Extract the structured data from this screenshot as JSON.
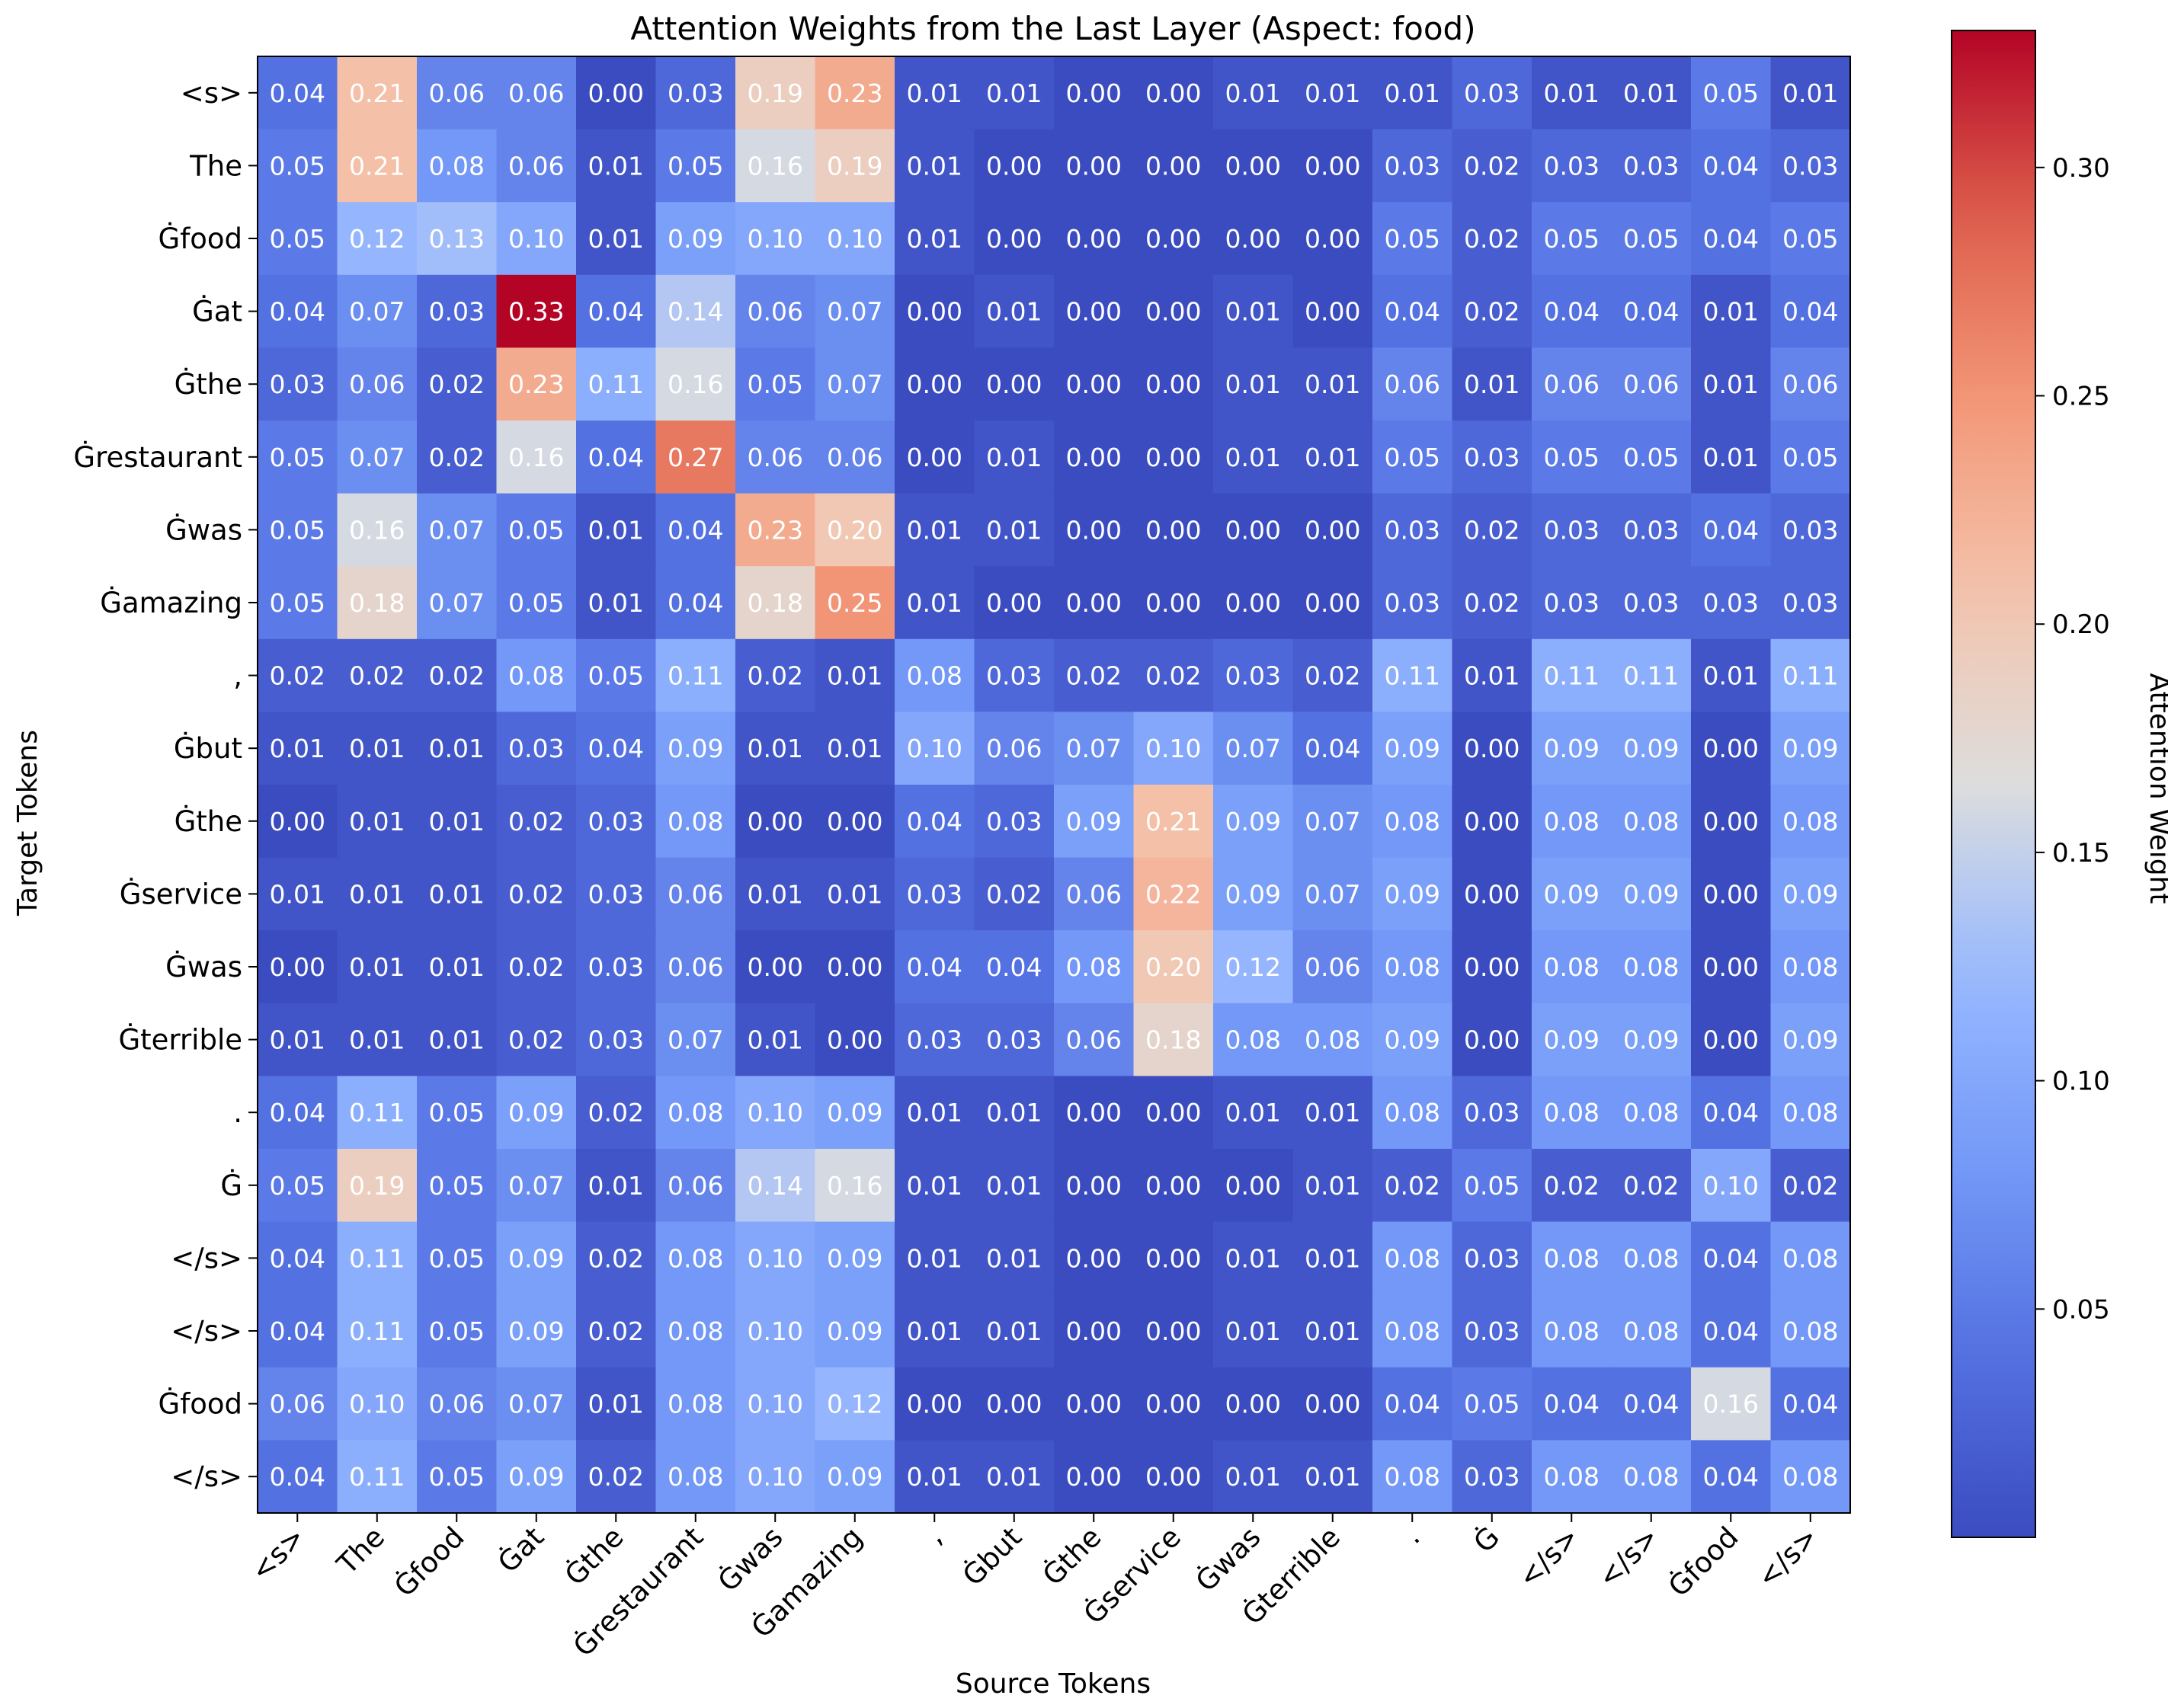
{
  "chart_data": {
    "type": "heatmap",
    "title": "Attention Weights from the Last Layer (Aspect: food)",
    "xlabel": "Source Tokens",
    "ylabel": "Target Tokens",
    "x_tokens": [
      "<s>",
      "The",
      "Ġfood",
      "Ġat",
      "Ġthe",
      "Ġrestaurant",
      "Ġwas",
      "Ġamazing",
      ",",
      "Ġbut",
      "Ġthe",
      "Ġservice",
      "Ġwas",
      "Ġterrible",
      ".",
      "Ġ",
      "</s>",
      "</s>",
      "Ġfood",
      "</s>"
    ],
    "y_tokens": [
      "<s>",
      "The",
      "Ġfood",
      "Ġat",
      "Ġthe",
      "Ġrestaurant",
      "Ġwas",
      "Ġamazing",
      ",",
      "Ġbut",
      "Ġthe",
      "Ġservice",
      "Ġwas",
      "Ġterrible",
      ".",
      "Ġ",
      "</s>",
      "</s>",
      "Ġfood",
      "</s>"
    ],
    "values": [
      [
        0.04,
        0.21,
        0.06,
        0.06,
        0.0,
        0.03,
        0.19,
        0.23,
        0.01,
        0.01,
        0.0,
        0.0,
        0.01,
        0.01,
        0.01,
        0.03,
        0.01,
        0.01,
        0.05,
        0.01
      ],
      [
        0.05,
        0.21,
        0.08,
        0.06,
        0.01,
        0.05,
        0.16,
        0.19,
        0.01,
        0.0,
        0.0,
        0.0,
        0.0,
        0.0,
        0.03,
        0.02,
        0.03,
        0.03,
        0.04,
        0.03
      ],
      [
        0.05,
        0.12,
        0.13,
        0.1,
        0.01,
        0.09,
        0.1,
        0.1,
        0.01,
        0.0,
        0.0,
        0.0,
        0.0,
        0.0,
        0.05,
        0.02,
        0.05,
        0.05,
        0.04,
        0.05
      ],
      [
        0.04,
        0.07,
        0.03,
        0.33,
        0.04,
        0.14,
        0.06,
        0.07,
        0.0,
        0.01,
        0.0,
        0.0,
        0.01,
        0.0,
        0.04,
        0.02,
        0.04,
        0.04,
        0.01,
        0.04
      ],
      [
        0.03,
        0.06,
        0.02,
        0.23,
        0.11,
        0.16,
        0.05,
        0.07,
        0.0,
        0.0,
        0.0,
        0.0,
        0.01,
        0.01,
        0.06,
        0.01,
        0.06,
        0.06,
        0.01,
        0.06
      ],
      [
        0.05,
        0.07,
        0.02,
        0.16,
        0.04,
        0.27,
        0.06,
        0.06,
        0.0,
        0.01,
        0.0,
        0.0,
        0.01,
        0.01,
        0.05,
        0.03,
        0.05,
        0.05,
        0.01,
        0.05
      ],
      [
        0.05,
        0.16,
        0.07,
        0.05,
        0.01,
        0.04,
        0.23,
        0.2,
        0.01,
        0.01,
        0.0,
        0.0,
        0.0,
        0.0,
        0.03,
        0.02,
        0.03,
        0.03,
        0.04,
        0.03
      ],
      [
        0.05,
        0.18,
        0.07,
        0.05,
        0.01,
        0.04,
        0.18,
        0.25,
        0.01,
        0.0,
        0.0,
        0.0,
        0.0,
        0.0,
        0.03,
        0.02,
        0.03,
        0.03,
        0.03,
        0.03
      ],
      [
        0.02,
        0.02,
        0.02,
        0.08,
        0.05,
        0.11,
        0.02,
        0.01,
        0.08,
        0.03,
        0.02,
        0.02,
        0.03,
        0.02,
        0.11,
        0.01,
        0.11,
        0.11,
        0.01,
        0.11
      ],
      [
        0.01,
        0.01,
        0.01,
        0.03,
        0.04,
        0.09,
        0.01,
        0.01,
        0.1,
        0.06,
        0.07,
        0.1,
        0.07,
        0.04,
        0.09,
        0.0,
        0.09,
        0.09,
        0.0,
        0.09
      ],
      [
        0.0,
        0.01,
        0.01,
        0.02,
        0.03,
        0.08,
        0.0,
        0.0,
        0.04,
        0.03,
        0.09,
        0.21,
        0.09,
        0.07,
        0.08,
        0.0,
        0.08,
        0.08,
        0.0,
        0.08
      ],
      [
        0.01,
        0.01,
        0.01,
        0.02,
        0.03,
        0.06,
        0.01,
        0.01,
        0.03,
        0.02,
        0.06,
        0.22,
        0.09,
        0.07,
        0.09,
        0.0,
        0.09,
        0.09,
        0.0,
        0.09
      ],
      [
        0.0,
        0.01,
        0.01,
        0.02,
        0.03,
        0.06,
        0.0,
        0.0,
        0.04,
        0.04,
        0.08,
        0.2,
        0.12,
        0.06,
        0.08,
        0.0,
        0.08,
        0.08,
        0.0,
        0.08
      ],
      [
        0.01,
        0.01,
        0.01,
        0.02,
        0.03,
        0.07,
        0.01,
        0.0,
        0.03,
        0.03,
        0.06,
        0.18,
        0.08,
        0.08,
        0.09,
        0.0,
        0.09,
        0.09,
        0.0,
        0.09
      ],
      [
        0.04,
        0.11,
        0.05,
        0.09,
        0.02,
        0.08,
        0.1,
        0.09,
        0.01,
        0.01,
        0.0,
        0.0,
        0.01,
        0.01,
        0.08,
        0.03,
        0.08,
        0.08,
        0.04,
        0.08
      ],
      [
        0.05,
        0.19,
        0.05,
        0.07,
        0.01,
        0.06,
        0.14,
        0.16,
        0.01,
        0.01,
        0.0,
        0.0,
        0.0,
        0.01,
        0.02,
        0.05,
        0.02,
        0.02,
        0.1,
        0.02
      ],
      [
        0.04,
        0.11,
        0.05,
        0.09,
        0.02,
        0.08,
        0.1,
        0.09,
        0.01,
        0.01,
        0.0,
        0.0,
        0.01,
        0.01,
        0.08,
        0.03,
        0.08,
        0.08,
        0.04,
        0.08
      ],
      [
        0.04,
        0.11,
        0.05,
        0.09,
        0.02,
        0.08,
        0.1,
        0.09,
        0.01,
        0.01,
        0.0,
        0.0,
        0.01,
        0.01,
        0.08,
        0.03,
        0.08,
        0.08,
        0.04,
        0.08
      ],
      [
        0.06,
        0.1,
        0.06,
        0.07,
        0.01,
        0.08,
        0.1,
        0.12,
        0.0,
        0.0,
        0.0,
        0.0,
        0.0,
        0.0,
        0.04,
        0.05,
        0.04,
        0.04,
        0.16,
        0.04
      ],
      [
        0.04,
        0.11,
        0.05,
        0.09,
        0.02,
        0.08,
        0.1,
        0.09,
        0.01,
        0.01,
        0.0,
        0.0,
        0.01,
        0.01,
        0.08,
        0.03,
        0.08,
        0.08,
        0.04,
        0.08
      ]
    ],
    "value_range": [
      0.0,
      0.33
    ],
    "colormap": "coolwarm",
    "colorbar": {
      "label": "Attention Weight",
      "ticks": [
        0.05,
        0.1,
        0.15,
        0.2,
        0.25,
        0.3
      ],
      "tick_labels": [
        "0.05",
        "0.10",
        "0.15",
        "0.20",
        "0.25",
        "0.30"
      ]
    }
  }
}
